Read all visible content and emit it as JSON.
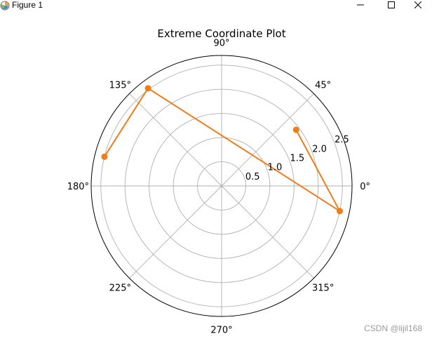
{
  "window": {
    "title": "Figure 1",
    "icons": [
      "app-icon",
      "minimize-icon",
      "maximize-icon",
      "close-icon"
    ]
  },
  "watermark": "CSDN @lijil168",
  "colors": {
    "series": "#f07d1a",
    "grid": "#b0b0b0",
    "frame": "#000000"
  },
  "chart_data": {
    "type": "line",
    "projection": "polar",
    "title": "Extreme Coordinate Plot",
    "theta_ticks": [
      {
        "deg": 0,
        "label": "0°"
      },
      {
        "deg": 45,
        "label": "45°"
      },
      {
        "deg": 90,
        "label": "90°"
      },
      {
        "deg": 135,
        "label": "135°"
      },
      {
        "deg": 180,
        "label": "180°"
      },
      {
        "deg": 225,
        "label": "225°"
      },
      {
        "deg": 270,
        "label": "270°"
      },
      {
        "deg": 315,
        "label": "315°"
      }
    ],
    "r_ticks": [
      {
        "value": 0.5,
        "label": "0.5"
      },
      {
        "value": 1.0,
        "label": "1.0"
      },
      {
        "value": 1.5,
        "label": "1.5"
      },
      {
        "value": 2.0,
        "label": "2.0"
      },
      {
        "value": 2.5,
        "label": "2.5"
      }
    ],
    "rlim": [
      0,
      2.7
    ],
    "grid": true,
    "series": [
      {
        "theta_deg": [
          37,
          348,
          127,
          166
        ],
        "r": [
          1.93,
          2.5,
          2.53,
          2.5
        ],
        "marker": "o"
      }
    ]
  }
}
